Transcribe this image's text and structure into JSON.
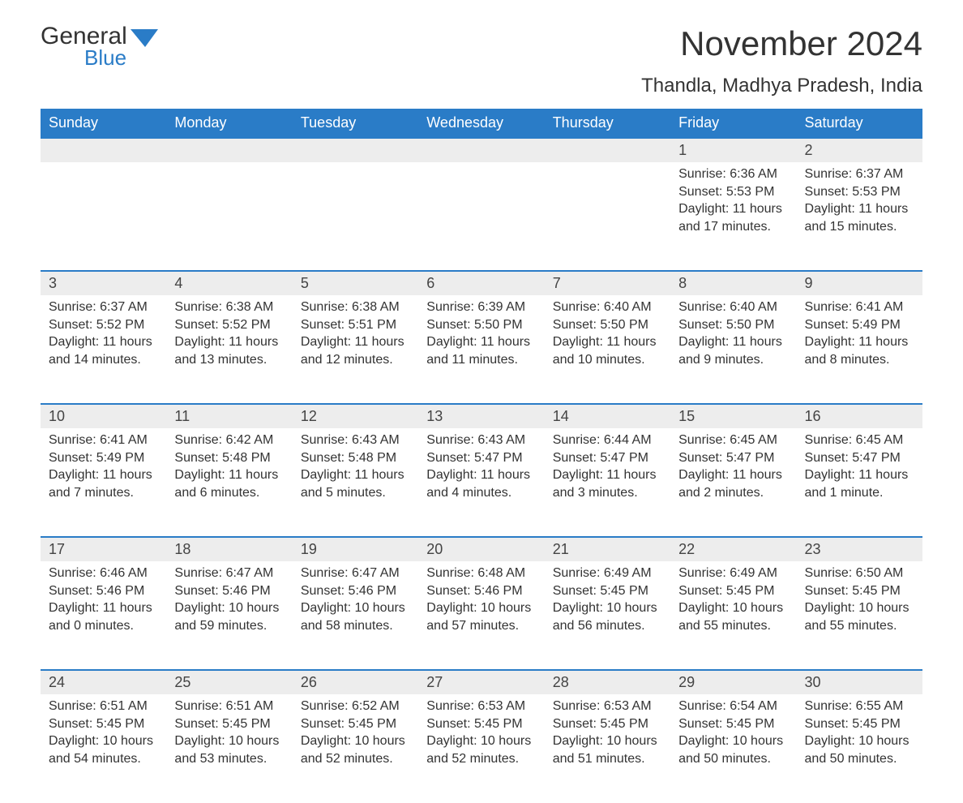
{
  "brand": {
    "line1": "General",
    "line2": "Blue",
    "line1_color": "#333333",
    "line2_color": "#2a7cc7"
  },
  "title": "November 2024",
  "location": "Thandla, Madhya Pradesh, India",
  "colors": {
    "header_bg": "#2a7cc7",
    "header_text": "#ffffff",
    "daynum_bg": "#ededed",
    "row_border": "#2a7cc7",
    "body_text": "#333333",
    "page_bg": "#ffffff"
  },
  "fonts": {
    "title_pt": 42,
    "location_pt": 24,
    "th_pt": 18,
    "daynum_pt": 18,
    "cell_pt": 16
  },
  "columns": [
    "Sunday",
    "Monday",
    "Tuesday",
    "Wednesday",
    "Thursday",
    "Friday",
    "Saturday"
  ],
  "weeks": [
    [
      null,
      null,
      null,
      null,
      null,
      {
        "day": "1",
        "sunrise": "Sunrise: 6:36 AM",
        "sunset": "Sunset: 5:53 PM",
        "daylight": "Daylight: 11 hours and 17 minutes."
      },
      {
        "day": "2",
        "sunrise": "Sunrise: 6:37 AM",
        "sunset": "Sunset: 5:53 PM",
        "daylight": "Daylight: 11 hours and 15 minutes."
      }
    ],
    [
      {
        "day": "3",
        "sunrise": "Sunrise: 6:37 AM",
        "sunset": "Sunset: 5:52 PM",
        "daylight": "Daylight: 11 hours and 14 minutes."
      },
      {
        "day": "4",
        "sunrise": "Sunrise: 6:38 AM",
        "sunset": "Sunset: 5:52 PM",
        "daylight": "Daylight: 11 hours and 13 minutes."
      },
      {
        "day": "5",
        "sunrise": "Sunrise: 6:38 AM",
        "sunset": "Sunset: 5:51 PM",
        "daylight": "Daylight: 11 hours and 12 minutes."
      },
      {
        "day": "6",
        "sunrise": "Sunrise: 6:39 AM",
        "sunset": "Sunset: 5:50 PM",
        "daylight": "Daylight: 11 hours and 11 minutes."
      },
      {
        "day": "7",
        "sunrise": "Sunrise: 6:40 AM",
        "sunset": "Sunset: 5:50 PM",
        "daylight": "Daylight: 11 hours and 10 minutes."
      },
      {
        "day": "8",
        "sunrise": "Sunrise: 6:40 AM",
        "sunset": "Sunset: 5:50 PM",
        "daylight": "Daylight: 11 hours and 9 minutes."
      },
      {
        "day": "9",
        "sunrise": "Sunrise: 6:41 AM",
        "sunset": "Sunset: 5:49 PM",
        "daylight": "Daylight: 11 hours and 8 minutes."
      }
    ],
    [
      {
        "day": "10",
        "sunrise": "Sunrise: 6:41 AM",
        "sunset": "Sunset: 5:49 PM",
        "daylight": "Daylight: 11 hours and 7 minutes."
      },
      {
        "day": "11",
        "sunrise": "Sunrise: 6:42 AM",
        "sunset": "Sunset: 5:48 PM",
        "daylight": "Daylight: 11 hours and 6 minutes."
      },
      {
        "day": "12",
        "sunrise": "Sunrise: 6:43 AM",
        "sunset": "Sunset: 5:48 PM",
        "daylight": "Daylight: 11 hours and 5 minutes."
      },
      {
        "day": "13",
        "sunrise": "Sunrise: 6:43 AM",
        "sunset": "Sunset: 5:47 PM",
        "daylight": "Daylight: 11 hours and 4 minutes."
      },
      {
        "day": "14",
        "sunrise": "Sunrise: 6:44 AM",
        "sunset": "Sunset: 5:47 PM",
        "daylight": "Daylight: 11 hours and 3 minutes."
      },
      {
        "day": "15",
        "sunrise": "Sunrise: 6:45 AM",
        "sunset": "Sunset: 5:47 PM",
        "daylight": "Daylight: 11 hours and 2 minutes."
      },
      {
        "day": "16",
        "sunrise": "Sunrise: 6:45 AM",
        "sunset": "Sunset: 5:47 PM",
        "daylight": "Daylight: 11 hours and 1 minute."
      }
    ],
    [
      {
        "day": "17",
        "sunrise": "Sunrise: 6:46 AM",
        "sunset": "Sunset: 5:46 PM",
        "daylight": "Daylight: 11 hours and 0 minutes."
      },
      {
        "day": "18",
        "sunrise": "Sunrise: 6:47 AM",
        "sunset": "Sunset: 5:46 PM",
        "daylight": "Daylight: 10 hours and 59 minutes."
      },
      {
        "day": "19",
        "sunrise": "Sunrise: 6:47 AM",
        "sunset": "Sunset: 5:46 PM",
        "daylight": "Daylight: 10 hours and 58 minutes."
      },
      {
        "day": "20",
        "sunrise": "Sunrise: 6:48 AM",
        "sunset": "Sunset: 5:46 PM",
        "daylight": "Daylight: 10 hours and 57 minutes."
      },
      {
        "day": "21",
        "sunrise": "Sunrise: 6:49 AM",
        "sunset": "Sunset: 5:45 PM",
        "daylight": "Daylight: 10 hours and 56 minutes."
      },
      {
        "day": "22",
        "sunrise": "Sunrise: 6:49 AM",
        "sunset": "Sunset: 5:45 PM",
        "daylight": "Daylight: 10 hours and 55 minutes."
      },
      {
        "day": "23",
        "sunrise": "Sunrise: 6:50 AM",
        "sunset": "Sunset: 5:45 PM",
        "daylight": "Daylight: 10 hours and 55 minutes."
      }
    ],
    [
      {
        "day": "24",
        "sunrise": "Sunrise: 6:51 AM",
        "sunset": "Sunset: 5:45 PM",
        "daylight": "Daylight: 10 hours and 54 minutes."
      },
      {
        "day": "25",
        "sunrise": "Sunrise: 6:51 AM",
        "sunset": "Sunset: 5:45 PM",
        "daylight": "Daylight: 10 hours and 53 minutes."
      },
      {
        "day": "26",
        "sunrise": "Sunrise: 6:52 AM",
        "sunset": "Sunset: 5:45 PM",
        "daylight": "Daylight: 10 hours and 52 minutes."
      },
      {
        "day": "27",
        "sunrise": "Sunrise: 6:53 AM",
        "sunset": "Sunset: 5:45 PM",
        "daylight": "Daylight: 10 hours and 52 minutes."
      },
      {
        "day": "28",
        "sunrise": "Sunrise: 6:53 AM",
        "sunset": "Sunset: 5:45 PM",
        "daylight": "Daylight: 10 hours and 51 minutes."
      },
      {
        "day": "29",
        "sunrise": "Sunrise: 6:54 AM",
        "sunset": "Sunset: 5:45 PM",
        "daylight": "Daylight: 10 hours and 50 minutes."
      },
      {
        "day": "30",
        "sunrise": "Sunrise: 6:55 AM",
        "sunset": "Sunset: 5:45 PM",
        "daylight": "Daylight: 10 hours and 50 minutes."
      }
    ]
  ]
}
